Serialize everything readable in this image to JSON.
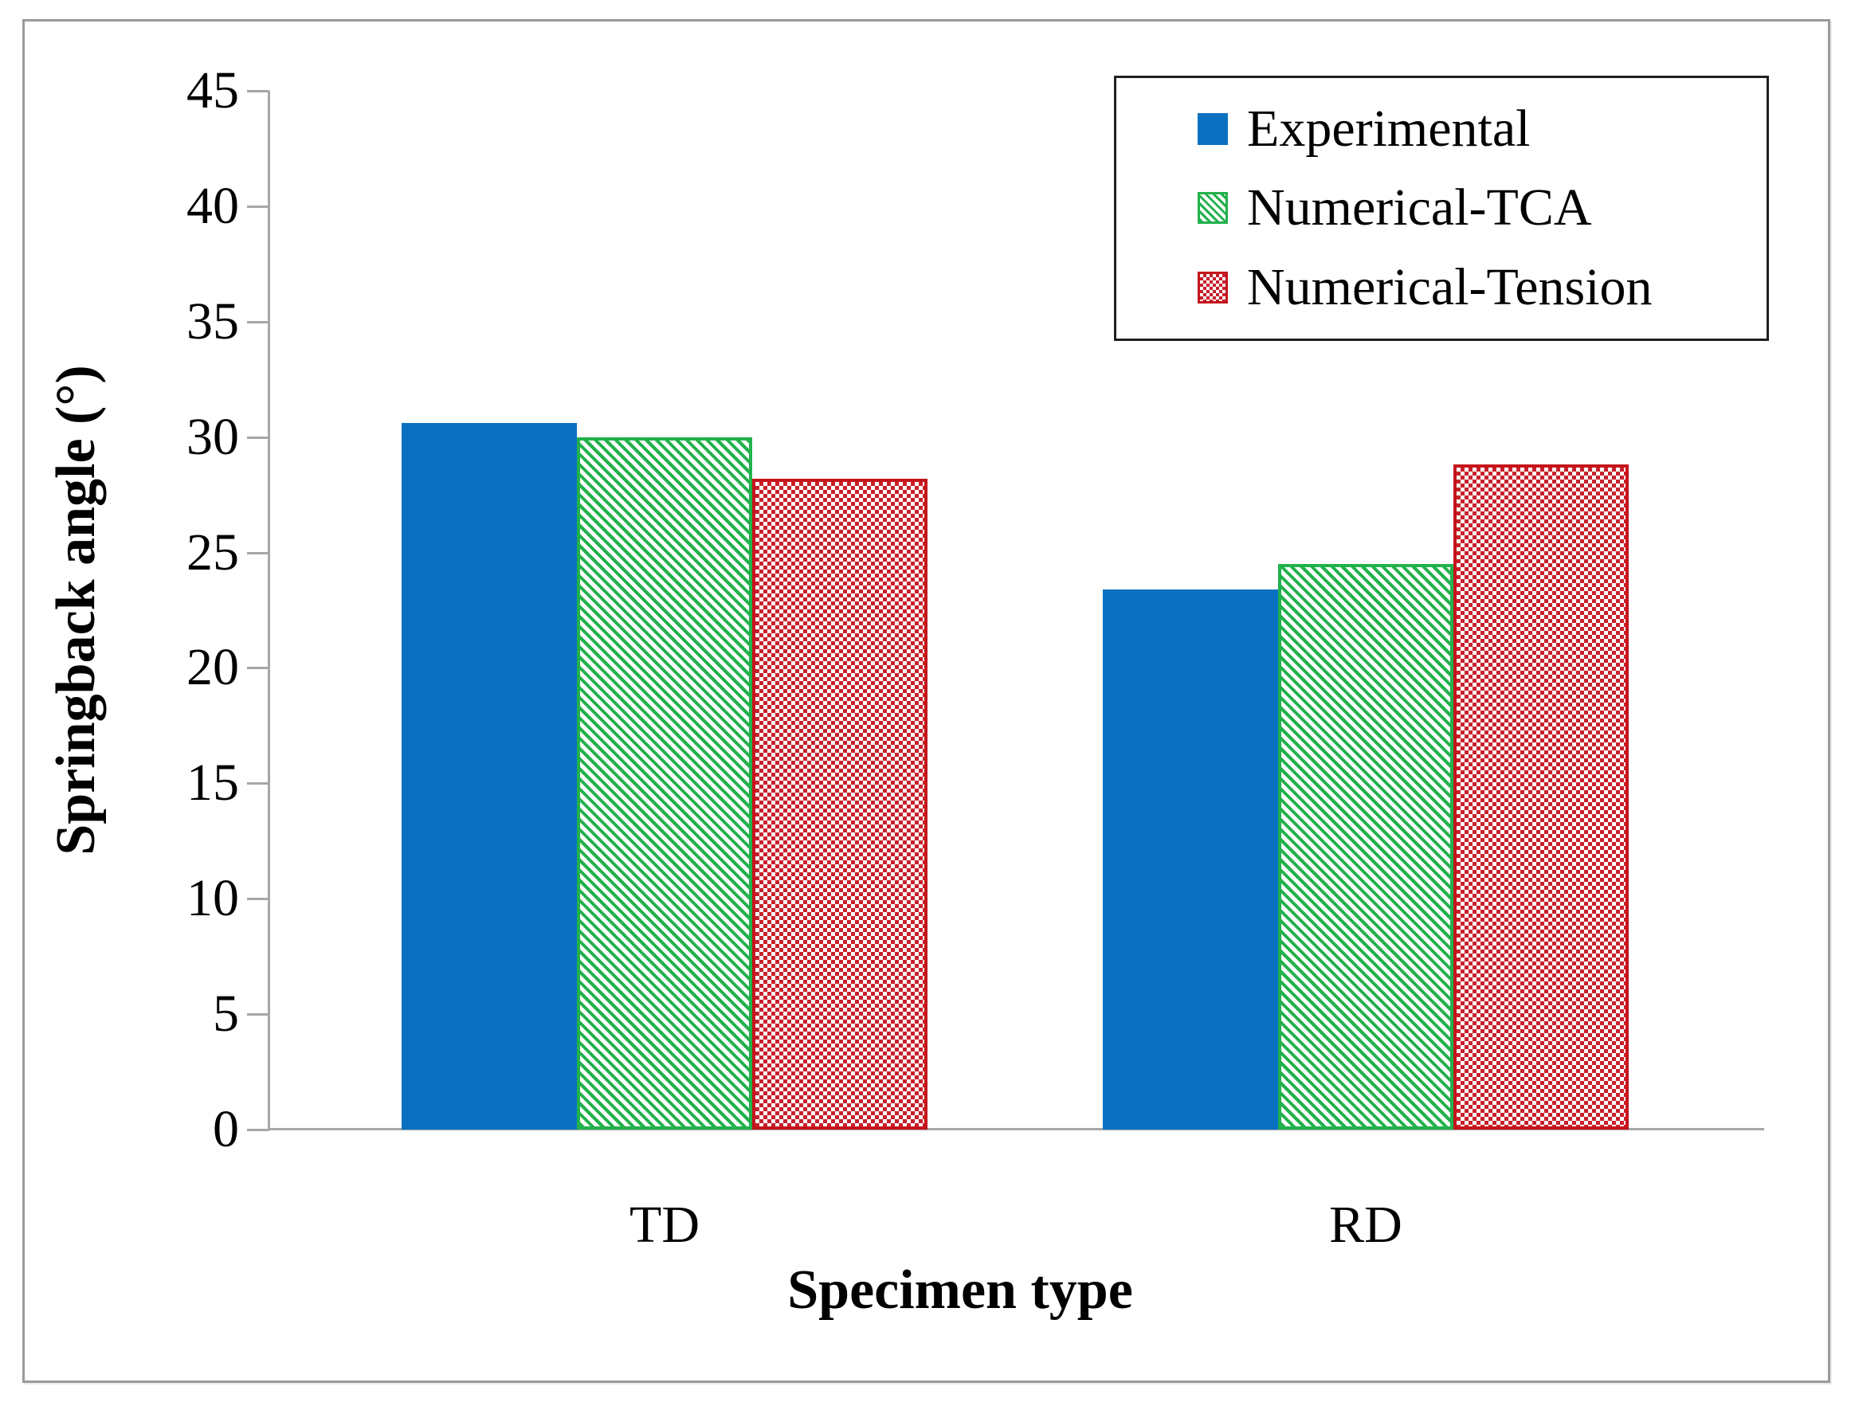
{
  "chart_data": {
    "type": "bar",
    "title": "",
    "xlabel": "Specimen type",
    "ylabel": "Springback angle (°)",
    "categories": [
      "TD",
      "RD"
    ],
    "series": [
      {
        "name": "Experimental",
        "pattern": "solid",
        "color": "#0a71c0",
        "values": [
          30.6,
          23.4
        ]
      },
      {
        "name": "Numerical-TCA",
        "pattern": "diagonal-stripes",
        "color": "#22b14c",
        "values": [
          30.0,
          24.5
        ]
      },
      {
        "name": "Numerical-Tension",
        "pattern": "checker",
        "color": "#c8202a",
        "values": [
          28.2,
          28.8
        ]
      }
    ],
    "ylim": [
      0,
      45
    ],
    "ytick_step": 5,
    "grid": false,
    "legend_position": "top-right"
  },
  "colors": {
    "experimental_blue": "#0a71c0",
    "tca_green": "#22b14c",
    "tension_red": "#c8202a",
    "tension_red_border": "#c4151c",
    "axis_gray": "#a6a6a6",
    "figure_border_gray": "#9a9a9a",
    "legend_border": "#1f1f1f"
  }
}
